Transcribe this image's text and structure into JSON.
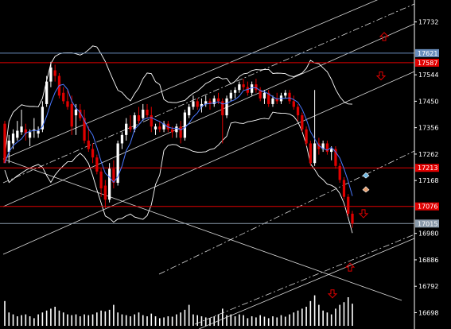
{
  "chart_data": {
    "type": "candlestick",
    "title": "",
    "xlabel": "",
    "ylabel": "",
    "y_axis": {
      "ticks": [
        17732,
        17544,
        17450,
        17356,
        17262,
        17168,
        16980,
        16886,
        16792,
        16698
      ],
      "range": [
        16640,
        17810
      ]
    },
    "price_tags": [
      {
        "value": "17621",
        "color": "#6a8ebd",
        "kind": "line"
      },
      {
        "value": "17587",
        "color": "#e00000",
        "kind": "level"
      },
      {
        "value": "17213",
        "color": "#e00000",
        "kind": "level"
      },
      {
        "value": "17076",
        "color": "#e00000",
        "kind": "level"
      },
      {
        "value": "17015",
        "color": "#8a9aaa",
        "kind": "current"
      }
    ],
    "colors": {
      "background": "#000000",
      "up": "#ffffff",
      "down": "#e00000",
      "ma": "#4a78ff",
      "bands": "#ffffff",
      "levels": "#e00000",
      "volume": "#ffffff",
      "arrow_up": "#e00000",
      "arrow_down": "#e00000"
    },
    "markers": [
      {
        "type": "arrow-up",
        "price": 17680
      },
      {
        "type": "arrow-down",
        "price": 17540
      },
      {
        "type": "arrow-down",
        "price": 17050
      },
      {
        "type": "arrow-up",
        "price": 16860
      },
      {
        "type": "arrow-down",
        "price": 16765
      },
      {
        "type": "diamond",
        "price": 17185,
        "color": "#6fb7e0"
      },
      {
        "type": "diamond",
        "price": 17135,
        "color": "#e8a070"
      }
    ],
    "candles": [
      [
        17370,
        17380,
        17230,
        17230
      ],
      [
        17270,
        17330,
        17230,
        17310
      ],
      [
        17300,
        17350,
        17280,
        17335
      ],
      [
        17320,
        17380,
        17310,
        17345
      ],
      [
        17340,
        17420,
        17330,
        17360
      ],
      [
        17350,
        17370,
        17310,
        17335
      ],
      [
        17320,
        17350,
        17290,
        17340
      ],
      [
        17345,
        17390,
        17320,
        17350
      ],
      [
        17335,
        17360,
        17320,
        17345
      ],
      [
        17350,
        17450,
        17340,
        17430
      ],
      [
        17440,
        17540,
        17430,
        17520
      ],
      [
        17520,
        17590,
        17500,
        17570
      ],
      [
        17560,
        17580,
        17520,
        17540
      ],
      [
        17540,
        17550,
        17460,
        17470
      ],
      [
        17480,
        17500,
        17440,
        17450
      ],
      [
        17450,
        17490,
        17420,
        17430
      ],
      [
        17440,
        17470,
        17330,
        17360
      ],
      [
        17400,
        17440,
        17330,
        17420
      ],
      [
        17420,
        17440,
        17380,
        17390
      ],
      [
        17390,
        17420,
        17300,
        17310
      ],
      [
        17310,
        17360,
        17270,
        17280
      ],
      [
        17280,
        17300,
        17230,
        17250
      ],
      [
        17250,
        17260,
        17190,
        17200
      ],
      [
        17200,
        17210,
        17110,
        17140
      ],
      [
        17150,
        17170,
        17070,
        17100
      ],
      [
        17100,
        17230,
        17090,
        17210
      ],
      [
        17210,
        17240,
        17140,
        17160
      ],
      [
        17160,
        17310,
        17150,
        17300
      ],
      [
        17300,
        17340,
        17280,
        17330
      ],
      [
        17330,
        17390,
        17310,
        17370
      ],
      [
        17360,
        17400,
        17340,
        17350
      ],
      [
        17350,
        17410,
        17340,
        17400
      ],
      [
        17400,
        17430,
        17370,
        17380
      ],
      [
        17390,
        17440,
        17380,
        17420
      ],
      [
        17420,
        17440,
        17390,
        17400
      ],
      [
        17400,
        17430,
        17340,
        17360
      ],
      [
        17350,
        17370,
        17330,
        17360
      ],
      [
        17360,
        17380,
        17340,
        17350
      ],
      [
        17350,
        17380,
        17340,
        17370
      ],
      [
        17370,
        17380,
        17340,
        17350
      ],
      [
        17350,
        17360,
        17320,
        17340
      ],
      [
        17340,
        17370,
        17320,
        17360
      ],
      [
        17360,
        17380,
        17300,
        17320
      ],
      [
        17320,
        17420,
        17310,
        17410
      ],
      [
        17400,
        17440,
        17390,
        17430
      ],
      [
        17430,
        17470,
        17420,
        17450
      ],
      [
        17450,
        17460,
        17420,
        17430
      ],
      [
        17430,
        17460,
        17410,
        17440
      ],
      [
        17440,
        17470,
        17430,
        17450
      ],
      [
        17450,
        17460,
        17420,
        17440
      ],
      [
        17440,
        17470,
        17430,
        17460
      ],
      [
        17460,
        17480,
        17440,
        17450
      ],
      [
        17450,
        17460,
        17300,
        17400
      ],
      [
        17400,
        17470,
        17390,
        17460
      ],
      [
        17460,
        17490,
        17450,
        17480
      ],
      [
        17480,
        17500,
        17460,
        17490
      ],
      [
        17490,
        17520,
        17480,
        17510
      ],
      [
        17510,
        17530,
        17490,
        17500
      ],
      [
        17500,
        17520,
        17470,
        17480
      ],
      [
        17480,
        17520,
        17470,
        17510
      ],
      [
        17510,
        17530,
        17480,
        17490
      ],
      [
        17490,
        17500,
        17450,
        17460
      ],
      [
        17460,
        17490,
        17440,
        17480
      ],
      [
        17480,
        17490,
        17430,
        17440
      ],
      [
        17440,
        17470,
        17430,
        17460
      ],
      [
        17460,
        17480,
        17440,
        17450
      ],
      [
        17450,
        17480,
        17440,
        17470
      ],
      [
        17470,
        17490,
        17460,
        17480
      ],
      [
        17480,
        17490,
        17440,
        17450
      ],
      [
        17450,
        17470,
        17420,
        17430
      ],
      [
        17430,
        17440,
        17380,
        17400
      ],
      [
        17400,
        17410,
        17340,
        17350
      ],
      [
        17350,
        17360,
        17290,
        17300
      ],
      [
        17300,
        17310,
        17220,
        17230
      ],
      [
        17230,
        17490,
        17220,
        17300
      ],
      [
        17300,
        17320,
        17260,
        17280
      ],
      [
        17280,
        17310,
        17270,
        17300
      ],
      [
        17300,
        17310,
        17260,
        17270
      ],
      [
        17270,
        17290,
        17240,
        17280
      ],
      [
        17280,
        17290,
        17210,
        17220
      ],
      [
        17220,
        17230,
        17160,
        17170
      ],
      [
        17170,
        17180,
        17100,
        17110
      ],
      [
        17110,
        17120,
        17040,
        17050
      ],
      [
        17050,
        17060,
        17000,
        17015
      ]
    ],
    "volume": [
      0.65,
      0.35,
      0.3,
      0.25,
      0.28,
      0.3,
      0.25,
      0.2,
      0.3,
      0.35,
      0.4,
      0.45,
      0.5,
      0.4,
      0.35,
      0.3,
      0.28,
      0.3,
      0.25,
      0.3,
      0.28,
      0.3,
      0.35,
      0.4,
      0.38,
      0.42,
      0.55,
      0.35,
      0.3,
      0.28,
      0.25,
      0.3,
      0.35,
      0.28,
      0.25,
      0.32,
      0.25,
      0.2,
      0.22,
      0.25,
      0.24,
      0.3,
      0.35,
      0.42,
      0.55,
      0.3,
      0.28,
      0.25,
      0.22,
      0.2,
      0.25,
      0.3,
      0.45,
      0.28,
      0.3,
      0.25,
      0.3,
      0.28,
      0.2,
      0.25,
      0.22,
      0.28,
      0.24,
      0.2,
      0.25,
      0.22,
      0.28,
      0.24,
      0.3,
      0.35,
      0.4,
      0.45,
      0.5,
      0.65,
      0.8,
      0.55,
      0.4,
      0.35,
      0.3,
      0.45,
      0.55,
      0.62,
      0.75,
      0.58
    ]
  }
}
